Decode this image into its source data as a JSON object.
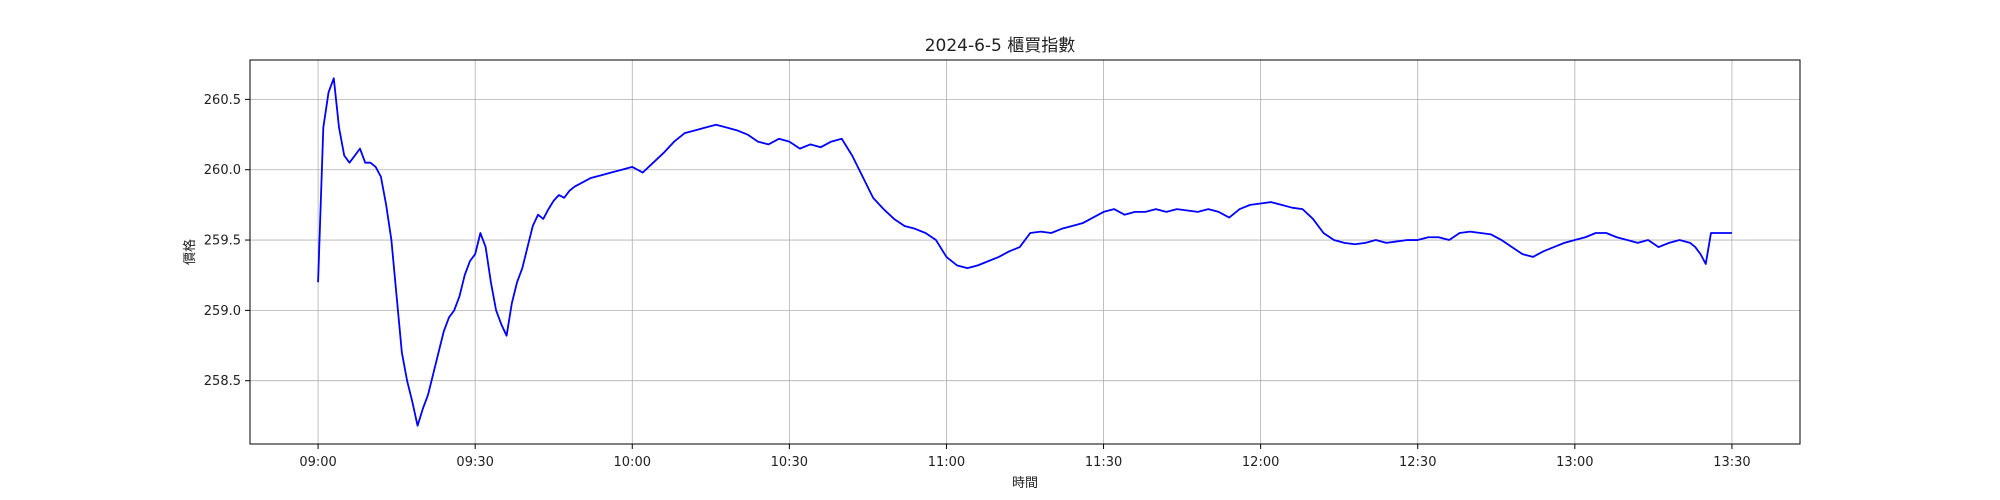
{
  "chart_data": {
    "type": "line",
    "title": "2024-6-5 櫃買指數",
    "xlabel": "時間",
    "ylabel": "價格",
    "x_ticks": [
      "09:00",
      "09:30",
      "10:00",
      "10:30",
      "11:00",
      "11:30",
      "12:00",
      "12:30",
      "13:00",
      "13:30"
    ],
    "y_ticks": [
      "258.5",
      "259.0",
      "259.5",
      "260.0",
      "260.5"
    ],
    "xlim": [
      "08:47",
      "13:43"
    ],
    "ylim": [
      258.05,
      260.78
    ],
    "grid": true,
    "legend": "none",
    "series": [
      {
        "color": "#0000ff",
        "x": [
          "09:00",
          "09:01",
          "09:02",
          "09:03",
          "09:04",
          "09:05",
          "09:06",
          "09:07",
          "09:08",
          "09:09",
          "09:10",
          "09:11",
          "09:12",
          "09:13",
          "09:14",
          "09:15",
          "09:16",
          "09:17",
          "09:18",
          "09:19",
          "09:20",
          "09:21",
          "09:22",
          "09:23",
          "09:24",
          "09:25",
          "09:26",
          "09:27",
          "09:28",
          "09:29",
          "09:30",
          "09:31",
          "09:32",
          "09:33",
          "09:34",
          "09:35",
          "09:36",
          "09:37",
          "09:38",
          "09:39",
          "09:40",
          "09:41",
          "09:42",
          "09:43",
          "09:44",
          "09:45",
          "09:46",
          "09:47",
          "09:48",
          "09:49",
          "09:50",
          "09:52",
          "09:54",
          "09:56",
          "09:58",
          "10:00",
          "10:02",
          "10:04",
          "10:06",
          "10:08",
          "10:10",
          "10:12",
          "10:14",
          "10:16",
          "10:18",
          "10:20",
          "10:22",
          "10:24",
          "10:26",
          "10:28",
          "10:30",
          "10:32",
          "10:34",
          "10:36",
          "10:38",
          "10:40",
          "10:42",
          "10:44",
          "10:46",
          "10:48",
          "10:50",
          "10:52",
          "10:54",
          "10:56",
          "10:58",
          "11:00",
          "11:02",
          "11:04",
          "11:06",
          "11:08",
          "11:10",
          "11:12",
          "11:14",
          "11:16",
          "11:18",
          "11:20",
          "11:22",
          "11:24",
          "11:26",
          "11:28",
          "11:30",
          "11:32",
          "11:34",
          "11:36",
          "11:38",
          "11:40",
          "11:42",
          "11:44",
          "11:46",
          "11:48",
          "11:50",
          "11:52",
          "11:54",
          "11:56",
          "11:58",
          "12:00",
          "12:02",
          "12:04",
          "12:06",
          "12:08",
          "12:10",
          "12:12",
          "12:14",
          "12:16",
          "12:18",
          "12:20",
          "12:22",
          "12:24",
          "12:26",
          "12:28",
          "12:30",
          "12:32",
          "12:34",
          "12:36",
          "12:38",
          "12:40",
          "12:42",
          "12:44",
          "12:46",
          "12:48",
          "12:50",
          "12:52",
          "12:54",
          "12:56",
          "12:58",
          "13:00",
          "13:02",
          "13:04",
          "13:06",
          "13:08",
          "13:10",
          "13:12",
          "13:14",
          "13:16",
          "13:18",
          "13:20",
          "13:22",
          "13:23",
          "13:24",
          "13:25",
          "13:26",
          "13:28",
          "13:30"
        ],
        "y": [
          259.2,
          260.3,
          260.55,
          260.65,
          260.3,
          260.1,
          260.05,
          260.1,
          260.15,
          260.05,
          260.05,
          260.02,
          259.95,
          259.75,
          259.5,
          259.1,
          258.7,
          258.5,
          258.35,
          258.18,
          258.3,
          258.4,
          258.55,
          258.7,
          258.85,
          258.95,
          259.0,
          259.1,
          259.25,
          259.35,
          259.4,
          259.55,
          259.45,
          259.2,
          259.0,
          258.9,
          258.82,
          259.05,
          259.2,
          259.3,
          259.45,
          259.6,
          259.68,
          259.65,
          259.72,
          259.78,
          259.82,
          259.8,
          259.85,
          259.88,
          259.9,
          259.94,
          259.96,
          259.98,
          260.0,
          260.02,
          259.98,
          260.05,
          260.12,
          260.2,
          260.26,
          260.28,
          260.3,
          260.32,
          260.3,
          260.28,
          260.25,
          260.2,
          260.18,
          260.22,
          260.2,
          260.15,
          260.18,
          260.16,
          260.2,
          260.22,
          260.1,
          259.95,
          259.8,
          259.72,
          259.65,
          259.6,
          259.58,
          259.55,
          259.5,
          259.38,
          259.32,
          259.3,
          259.32,
          259.35,
          259.38,
          259.42,
          259.45,
          259.55,
          259.56,
          259.55,
          259.58,
          259.6,
          259.62,
          259.66,
          259.7,
          259.72,
          259.68,
          259.7,
          259.7,
          259.72,
          259.7,
          259.72,
          259.71,
          259.7,
          259.72,
          259.7,
          259.66,
          259.72,
          259.75,
          259.76,
          259.77,
          259.75,
          259.73,
          259.72,
          259.65,
          259.55,
          259.5,
          259.48,
          259.47,
          259.48,
          259.5,
          259.48,
          259.49,
          259.5,
          259.5,
          259.52,
          259.52,
          259.5,
          259.55,
          259.56,
          259.55,
          259.54,
          259.5,
          259.45,
          259.4,
          259.38,
          259.42,
          259.45,
          259.48,
          259.5,
          259.52,
          259.55,
          259.55,
          259.52,
          259.5,
          259.48,
          259.5,
          259.45,
          259.48,
          259.5,
          259.48,
          259.45,
          259.4,
          259.33,
          259.55,
          259.55,
          259.55
        ]
      }
    ]
  }
}
